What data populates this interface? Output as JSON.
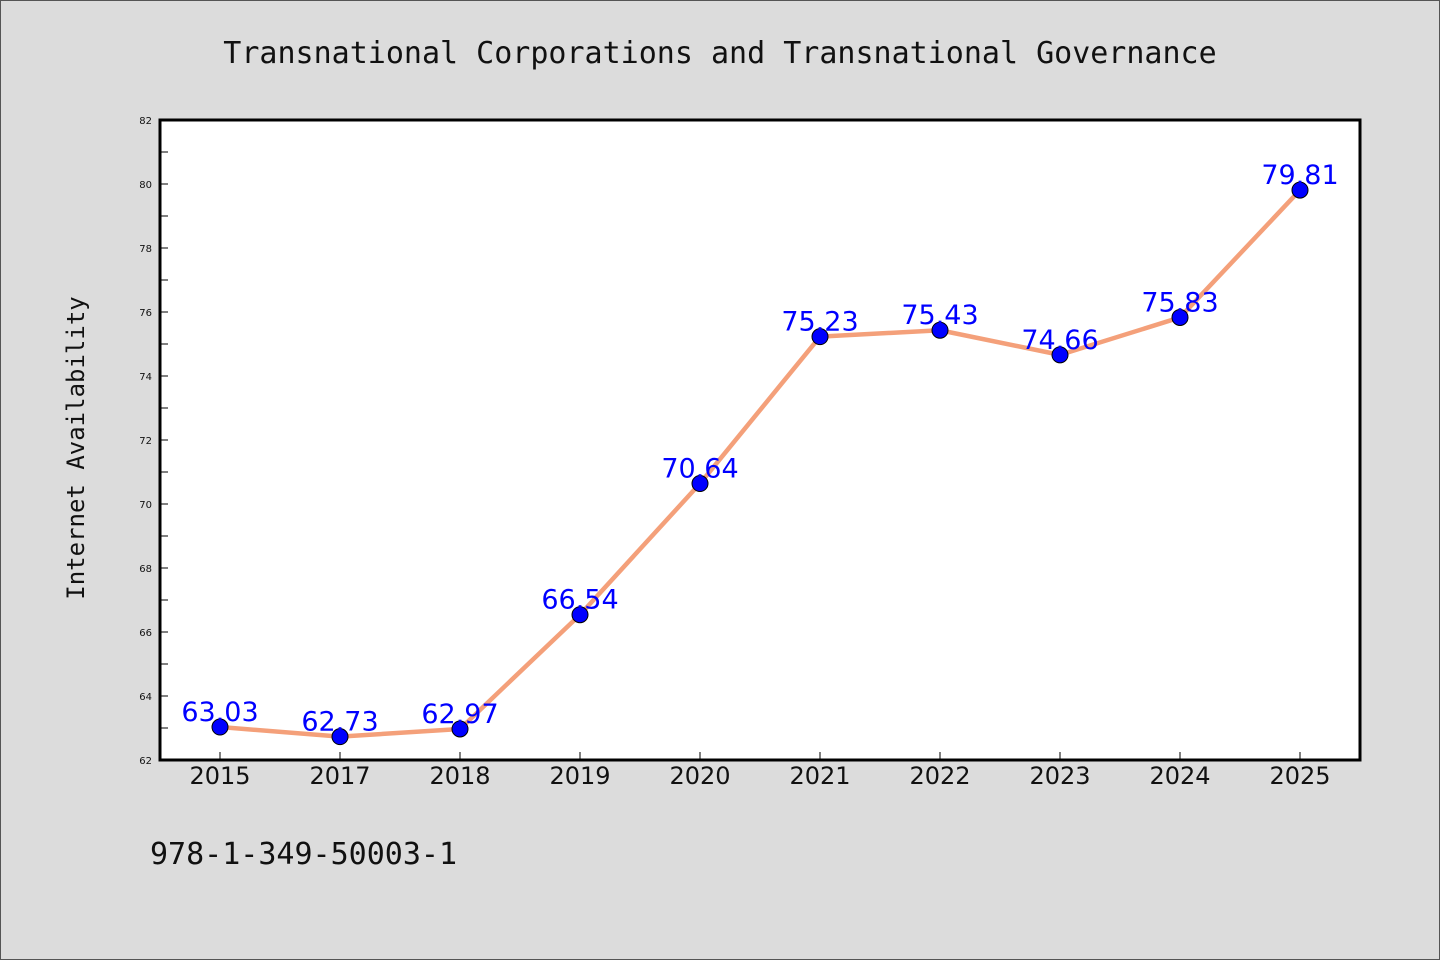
{
  "chart_data": {
    "type": "line",
    "title": "Transnational Corporations and Transnational Governance",
    "xlabel": "",
    "ylabel": "Internet Availability",
    "categories": [
      "2015",
      "2017",
      "2018",
      "2019",
      "2020",
      "2021",
      "2022",
      "2023",
      "2024",
      "2025"
    ],
    "series": [
      {
        "values": [
          63.03,
          62.73,
          62.97,
          66.54,
          70.64,
          75.23,
          75.43,
          74.66,
          75.83,
          79.81
        ],
        "line_color": "#f4a07a",
        "marker_color": "#0000ff"
      }
    ],
    "data_labels": [
      "63.03",
      "62.73",
      "62.97",
      "66.54",
      "70.64",
      "75.23",
      "75.43",
      "74.66",
      "75.83",
      "79.81"
    ],
    "ylim": [
      62,
      82
    ],
    "yticks": [
      62,
      64,
      66,
      68,
      70,
      72,
      74,
      76,
      78,
      80,
      82
    ],
    "grid": false,
    "legend": "none"
  },
  "footer": {
    "isbn": "978-1-349-50003-1"
  }
}
